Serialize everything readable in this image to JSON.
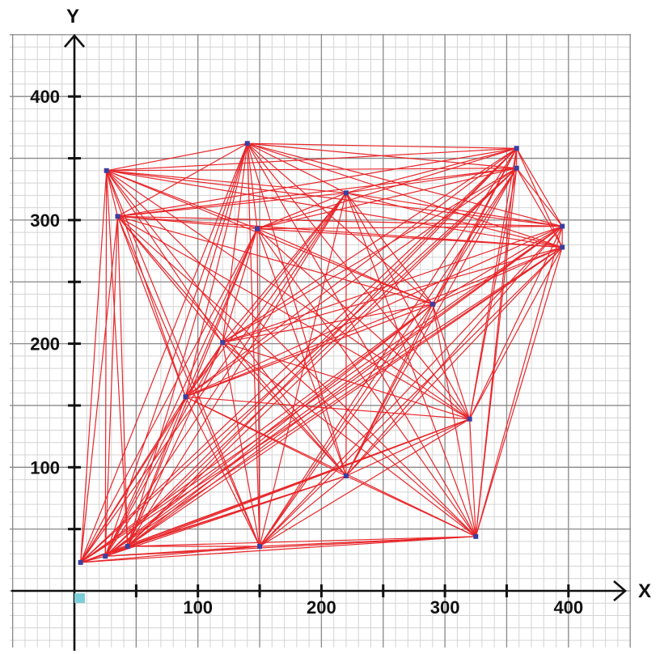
{
  "chart_data": {
    "type": "scatter",
    "xlabel": "X",
    "ylabel": "Y",
    "xlim": [
      -50,
      450
    ],
    "ylim": [
      -50,
      465
    ],
    "x_ticks": [
      100,
      200,
      300,
      400
    ],
    "y_ticks": [
      100,
      200,
      300,
      400
    ],
    "x_minor_ticks": [
      50,
      150,
      250,
      350
    ],
    "y_minor_ticks": [
      50,
      150,
      250,
      350
    ],
    "grid": true,
    "points": [
      {
        "x": 5,
        "y": 23
      },
      {
        "x": 25,
        "y": 28
      },
      {
        "x": 43,
        "y": 36
      },
      {
        "x": 150,
        "y": 36
      },
      {
        "x": 325,
        "y": 44
      },
      {
        "x": 220,
        "y": 93
      },
      {
        "x": 320,
        "y": 139
      },
      {
        "x": 90,
        "y": 157
      },
      {
        "x": 120,
        "y": 201
      },
      {
        "x": 290,
        "y": 232
      },
      {
        "x": 148,
        "y": 293
      },
      {
        "x": 220,
        "y": 322
      },
      {
        "x": 35,
        "y": 303
      },
      {
        "x": 26,
        "y": 340
      },
      {
        "x": 140,
        "y": 362
      },
      {
        "x": 358,
        "y": 358
      },
      {
        "x": 358,
        "y": 342
      },
      {
        "x": 395,
        "y": 295
      },
      {
        "x": 395,
        "y": 278
      }
    ],
    "edges": "complete",
    "colors": {
      "edge": "#e8262a",
      "point": "#3b3fa0",
      "axis": "#111111",
      "grid_minor": "#d4d4d4",
      "grid_major": "#8a8a8a",
      "origin_marker": "#7ccfd8"
    }
  }
}
